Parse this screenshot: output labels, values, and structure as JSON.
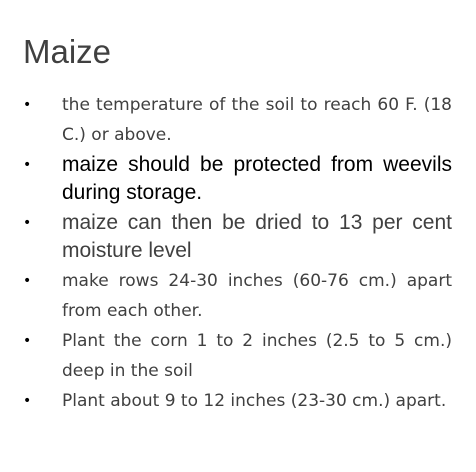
{
  "document": {
    "title": "Maize",
    "bullet_glyph": "•",
    "items": [
      {
        "text": "the temperature of the soil to reach 60 F. (18 C.) or above."
      },
      {
        "text": "maize should be protected from weevils during storage."
      },
      {
        "text": "maize can then be dried to 13 per cent moisture level"
      },
      {
        "text": "make rows 24-30 inches (60-76 cm.) apart from each other."
      },
      {
        "text": "Plant the corn 1 to 2 inches (2.5 to 5 cm.) deep in the soil"
      },
      {
        "text": "Plant about 9 to 12 inches (23-30 cm.) apart."
      }
    ]
  }
}
